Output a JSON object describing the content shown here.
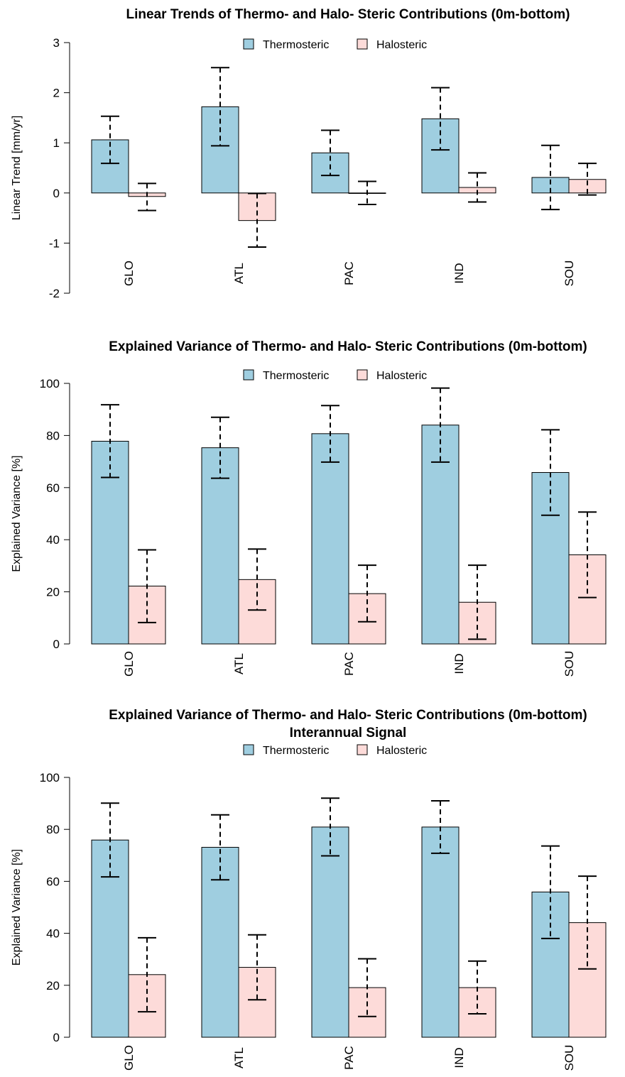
{
  "colors": {
    "thermosteric": "#9FCEE0",
    "halosteric": "#FDDBD9",
    "stroke": "#000000"
  },
  "chart_data": [
    {
      "type": "bar",
      "title": "Linear Trends of Thermo- and Halo- Steric Contributions (0m-bottom)",
      "subtitle": "",
      "xlabel": "",
      "ylabel": "Linear Trend [mm/yr]",
      "ylim": [
        -2,
        3
      ],
      "yticks": [
        -2,
        -1,
        0,
        1,
        2,
        3
      ],
      "ytick_labels": [
        "-2",
        "-1",
        "0",
        "1",
        "2",
        "3"
      ],
      "categories": [
        "GLO",
        "ATL",
        "PAC",
        "IND",
        "SOU"
      ],
      "legend": {
        "position": "top-center",
        "labels": [
          "Thermosteric",
          "Halosteric"
        ]
      },
      "grid": false,
      "series": [
        {
          "name": "Thermosteric",
          "values": [
            1.06,
            1.72,
            0.8,
            1.48,
            0.31
          ],
          "err_low": [
            0.59,
            0.94,
            0.35,
            0.86,
            -0.33
          ],
          "err_high": [
            1.53,
            2.5,
            1.25,
            2.1,
            0.95
          ]
        },
        {
          "name": "Halosteric",
          "values": [
            -0.07,
            -0.55,
            -0.01,
            0.11,
            0.27
          ],
          "err_low": [
            -0.35,
            -1.08,
            -0.23,
            -0.18,
            -0.04
          ],
          "err_high": [
            0.19,
            -0.01,
            0.23,
            0.4,
            0.59
          ]
        }
      ]
    },
    {
      "type": "bar",
      "title": "Explained Variance of Thermo- and Halo- Steric Contributions (0m-bottom)",
      "subtitle": "",
      "xlabel": "",
      "ylabel": "Explained Variance [%]",
      "ylim": [
        0,
        100
      ],
      "yticks": [
        0,
        20,
        40,
        60,
        80,
        100
      ],
      "ytick_labels": [
        "0",
        "20",
        "40",
        "60",
        "80",
        "100"
      ],
      "categories": [
        "GLO",
        "ATL",
        "PAC",
        "IND",
        "SOU"
      ],
      "legend": {
        "position": "top-center",
        "labels": [
          "Thermosteric",
          "Halosteric"
        ]
      },
      "grid": false,
      "series": [
        {
          "name": "Thermosteric",
          "values": [
            77.8,
            75.3,
            80.7,
            84.0,
            65.8
          ],
          "err_low": [
            63.9,
            63.6,
            69.8,
            69.8,
            49.4
          ],
          "err_high": [
            91.8,
            87.0,
            91.5,
            98.2,
            82.2
          ]
        },
        {
          "name": "Halosteric",
          "values": [
            22.2,
            24.7,
            19.3,
            16.0,
            34.2
          ],
          "err_low": [
            8.2,
            13.0,
            8.5,
            1.8,
            17.8
          ],
          "err_high": [
            36.1,
            36.4,
            30.2,
            30.2,
            50.6
          ]
        }
      ]
    },
    {
      "type": "bar",
      "title": "Explained Variance of Thermo- and Halo- Steric Contributions (0m-bottom)",
      "subtitle": "Interannual Signal",
      "xlabel": "",
      "ylabel": "Explained Variance [%]",
      "ylim": [
        0,
        100
      ],
      "yticks": [
        0,
        20,
        40,
        60,
        80,
        100
      ],
      "ytick_labels": [
        "0",
        "20",
        "40",
        "60",
        "80",
        "100"
      ],
      "categories": [
        "GLO",
        "ATL",
        "PAC",
        "IND",
        "SOU"
      ],
      "legend": {
        "position": "top-center",
        "labels": [
          "Thermosteric",
          "Halosteric"
        ]
      },
      "grid": false,
      "series": [
        {
          "name": "Thermosteric",
          "values": [
            75.9,
            73.1,
            80.9,
            80.9,
            55.9
          ],
          "err_low": [
            61.7,
            60.6,
            69.8,
            70.8,
            38.0
          ],
          "err_high": [
            90.1,
            85.6,
            92.0,
            91.0,
            73.6
          ]
        },
        {
          "name": "Halosteric",
          "values": [
            24.1,
            26.9,
            19.1,
            19.1,
            44.1
          ],
          "err_low": [
            9.8,
            14.4,
            8.0,
            9.0,
            26.3
          ],
          "err_high": [
            38.3,
            39.4,
            30.2,
            29.3,
            62.0
          ]
        }
      ]
    }
  ]
}
